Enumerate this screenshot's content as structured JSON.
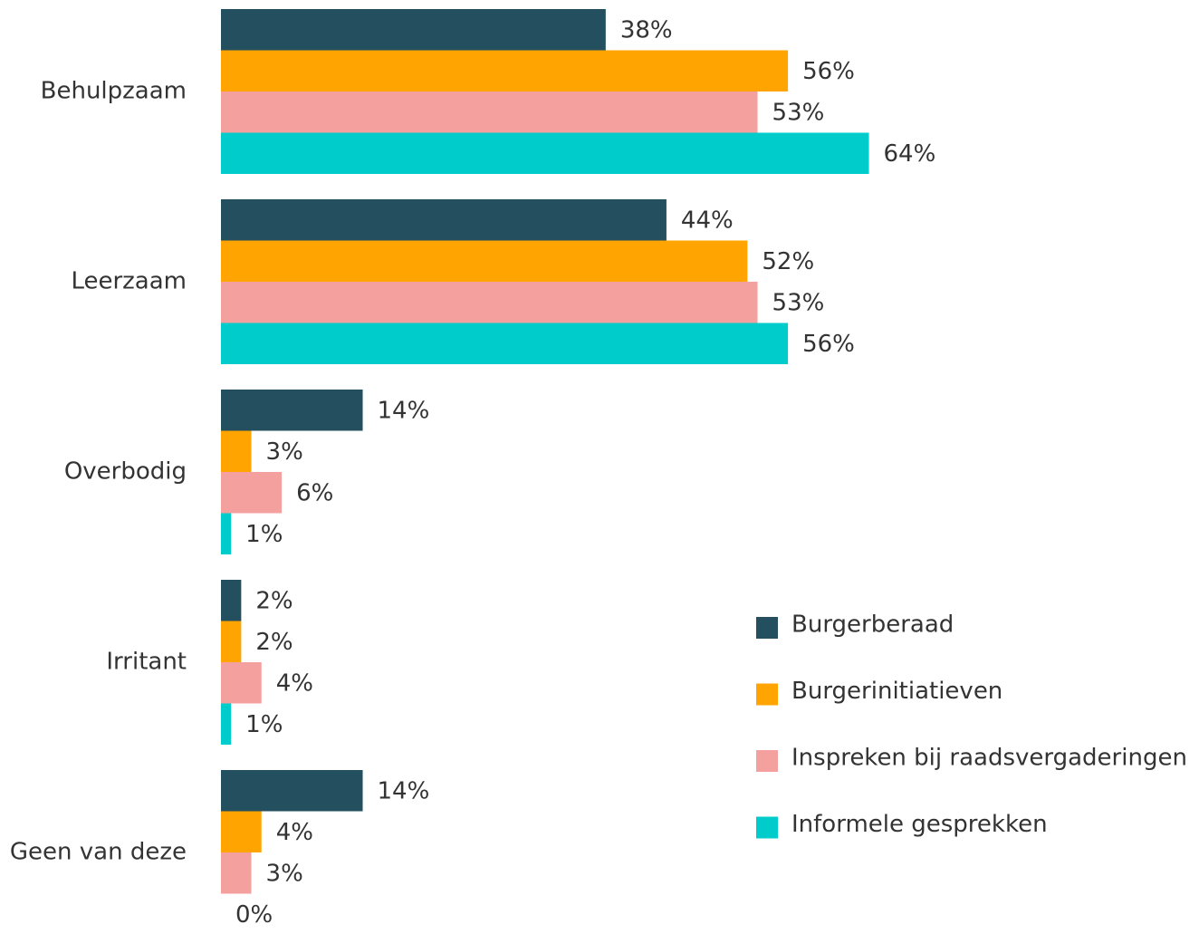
{
  "chart_data": {
    "type": "hbar",
    "categories": [
      "Behulpzaam",
      "Leerzaam",
      "Overbodig",
      "Irritant",
      "Geen van deze"
    ],
    "series": [
      {
        "name": "Burgerberaad",
        "color": "#234f5e",
        "values": [
          38,
          44,
          14,
          2,
          14
        ],
        "value_labels": [
          "38%",
          "44%",
          "14%",
          "2%",
          "14%"
        ]
      },
      {
        "name": "Burgerinitiatieven",
        "color": "#ffa400",
        "values": [
          56,
          52,
          3,
          2,
          4
        ],
        "value_labels": [
          "56%",
          "52%",
          "3%",
          "2%",
          "4%"
        ]
      },
      {
        "name": "Inspreken bij raadsvergaderingen",
        "color": "#f4a09e",
        "values": [
          53,
          53,
          6,
          4,
          3
        ],
        "value_labels": [
          "53%",
          "53%",
          "6%",
          "4%",
          "3%"
        ]
      },
      {
        "name": "Informele gesprekken",
        "color": "#00cccc",
        "values": [
          64,
          56,
          1,
          1,
          0
        ],
        "value_labels": [
          "64%",
          "56%",
          "1%",
          "1%",
          "0%"
        ]
      }
    ],
    "legend": "right"
  }
}
